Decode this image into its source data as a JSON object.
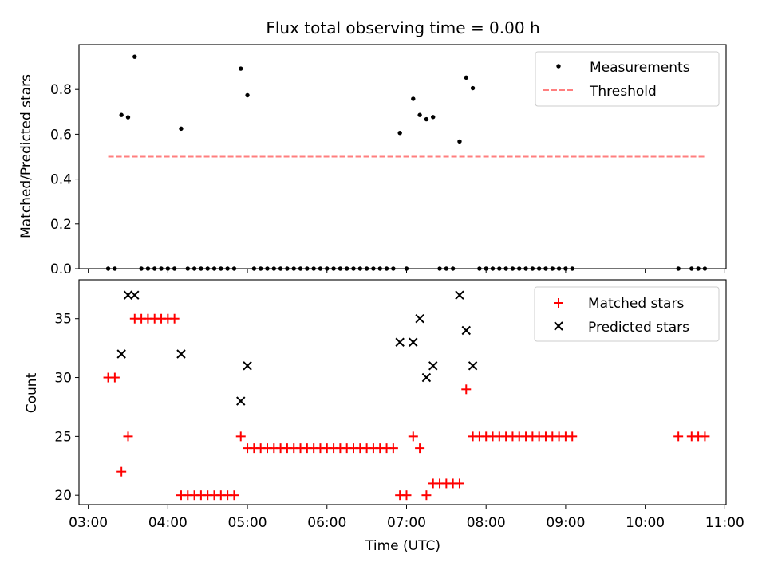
{
  "chart_data": [
    {
      "type": "scatter",
      "title": "Flux total observing time = 0.00 h",
      "xlabel": "",
      "ylabel": "Matched/Predicted stars",
      "ylim": [
        0,
        1.0
      ],
      "yticks": [
        0.0,
        0.2,
        0.4,
        0.6,
        0.8
      ],
      "ytick_labels": [
        "0.0",
        "0.2",
        "0.4",
        "0.6",
        "0.8"
      ],
      "xlim": [
        "02:53",
        "11:01"
      ],
      "legend": {
        "position": "top-right",
        "entries": [
          "Measurements",
          "Threshold"
        ]
      },
      "colors": {
        "measurements": "#000000",
        "threshold": "#ff7f7f"
      },
      "series": [
        {
          "name": "Measurements",
          "marker": "dot",
          "points": [
            [
              "03:15",
              0
            ],
            [
              "03:20",
              0
            ],
            [
              "03:25",
              0.686
            ],
            [
              "03:30",
              0.676
            ],
            [
              "03:35",
              0.946
            ],
            [
              "03:40",
              0
            ],
            [
              "03:45",
              0
            ],
            [
              "03:50",
              0
            ],
            [
              "03:55",
              0
            ],
            [
              "04:00",
              0
            ],
            [
              "04:05",
              0
            ],
            [
              "04:10",
              0.625
            ],
            [
              "04:15",
              0
            ],
            [
              "04:20",
              0
            ],
            [
              "04:25",
              0
            ],
            [
              "04:30",
              0
            ],
            [
              "04:35",
              0
            ],
            [
              "04:40",
              0
            ],
            [
              "04:45",
              0
            ],
            [
              "04:50",
              0
            ],
            [
              "04:55",
              0.893
            ],
            [
              "05:00",
              0.774
            ],
            [
              "05:05",
              0
            ],
            [
              "05:10",
              0
            ],
            [
              "05:15",
              0
            ],
            [
              "05:20",
              0
            ],
            [
              "05:25",
              0
            ],
            [
              "05:30",
              0
            ],
            [
              "05:35",
              0
            ],
            [
              "05:40",
              0
            ],
            [
              "05:45",
              0
            ],
            [
              "05:50",
              0
            ],
            [
              "05:55",
              0
            ],
            [
              "06:00",
              0
            ],
            [
              "06:05",
              0
            ],
            [
              "06:10",
              0
            ],
            [
              "06:15",
              0
            ],
            [
              "06:20",
              0
            ],
            [
              "06:25",
              0
            ],
            [
              "06:30",
              0
            ],
            [
              "06:35",
              0
            ],
            [
              "06:40",
              0
            ],
            [
              "06:45",
              0
            ],
            [
              "06:50",
              0
            ],
            [
              "06:55",
              0.606
            ],
            [
              "07:00",
              0
            ],
            [
              "07:05",
              0.758
            ],
            [
              "07:10",
              0.686
            ],
            [
              "07:15",
              0.667
            ],
            [
              "07:20",
              0.677
            ],
            [
              "07:25",
              0
            ],
            [
              "07:30",
              0
            ],
            [
              "07:35",
              0
            ],
            [
              "07:40",
              0.568
            ],
            [
              "07:45",
              0.853
            ],
            [
              "07:50",
              0.806
            ],
            [
              "07:55",
              0
            ],
            [
              "08:00",
              0
            ],
            [
              "08:05",
              0
            ],
            [
              "08:10",
              0
            ],
            [
              "08:15",
              0
            ],
            [
              "08:20",
              0
            ],
            [
              "08:25",
              0
            ],
            [
              "08:30",
              0
            ],
            [
              "08:35",
              0
            ],
            [
              "08:40",
              0
            ],
            [
              "08:45",
              0
            ],
            [
              "08:50",
              0
            ],
            [
              "08:55",
              0
            ],
            [
              "09:00",
              0
            ],
            [
              "09:05",
              0
            ],
            [
              "10:25",
              0
            ],
            [
              "10:35",
              0
            ],
            [
              "10:40",
              0
            ],
            [
              "10:45",
              0
            ]
          ]
        },
        {
          "name": "Threshold",
          "style": "dashed",
          "points": [
            [
              "03:15",
              0.5
            ],
            [
              "10:45",
              0.5
            ]
          ]
        }
      ]
    },
    {
      "type": "scatter",
      "title": "",
      "xlabel": "Time (UTC)",
      "ylabel": "Count",
      "ylim": [
        19.2,
        38.3
      ],
      "yticks": [
        20,
        25,
        30,
        35
      ],
      "ytick_labels": [
        "20",
        "25",
        "30",
        "35"
      ],
      "xlim": [
        "02:53",
        "11:01"
      ],
      "xticks": [
        "03:00",
        "04:00",
        "05:00",
        "06:00",
        "07:00",
        "08:00",
        "09:00",
        "10:00",
        "11:00"
      ],
      "legend": {
        "position": "top-right",
        "entries": [
          "Matched stars",
          "Predicted stars"
        ]
      },
      "colors": {
        "matched": "#ff0000",
        "predicted": "#000000"
      },
      "series": [
        {
          "name": "Matched stars",
          "marker": "plus",
          "points": [
            [
              "03:15",
              30
            ],
            [
              "03:20",
              30
            ],
            [
              "03:25",
              22
            ],
            [
              "03:30",
              25
            ],
            [
              "03:35",
              35
            ],
            [
              "03:40",
              35
            ],
            [
              "03:45",
              35
            ],
            [
              "03:50",
              35
            ],
            [
              "03:55",
              35
            ],
            [
              "04:00",
              35
            ],
            [
              "04:05",
              35
            ],
            [
              "04:10",
              20
            ],
            [
              "04:15",
              20
            ],
            [
              "04:20",
              20
            ],
            [
              "04:25",
              20
            ],
            [
              "04:30",
              20
            ],
            [
              "04:35",
              20
            ],
            [
              "04:40",
              20
            ],
            [
              "04:45",
              20
            ],
            [
              "04:50",
              20
            ],
            [
              "04:55",
              25
            ],
            [
              "05:00",
              24
            ],
            [
              "05:05",
              24
            ],
            [
              "05:10",
              24
            ],
            [
              "05:15",
              24
            ],
            [
              "05:20",
              24
            ],
            [
              "05:25",
              24
            ],
            [
              "05:30",
              24
            ],
            [
              "05:35",
              24
            ],
            [
              "05:40",
              24
            ],
            [
              "05:45",
              24
            ],
            [
              "05:50",
              24
            ],
            [
              "05:55",
              24
            ],
            [
              "06:00",
              24
            ],
            [
              "06:05",
              24
            ],
            [
              "06:10",
              24
            ],
            [
              "06:15",
              24
            ],
            [
              "06:20",
              24
            ],
            [
              "06:25",
              24
            ],
            [
              "06:30",
              24
            ],
            [
              "06:35",
              24
            ],
            [
              "06:40",
              24
            ],
            [
              "06:45",
              24
            ],
            [
              "06:50",
              24
            ],
            [
              "06:55",
              20
            ],
            [
              "07:00",
              20
            ],
            [
              "07:05",
              25
            ],
            [
              "07:10",
              24
            ],
            [
              "07:15",
              20
            ],
            [
              "07:20",
              21
            ],
            [
              "07:25",
              21
            ],
            [
              "07:30",
              21
            ],
            [
              "07:35",
              21
            ],
            [
              "07:40",
              21
            ],
            [
              "07:45",
              29
            ],
            [
              "07:50",
              25
            ],
            [
              "07:55",
              25
            ],
            [
              "08:00",
              25
            ],
            [
              "08:05",
              25
            ],
            [
              "08:10",
              25
            ],
            [
              "08:15",
              25
            ],
            [
              "08:20",
              25
            ],
            [
              "08:25",
              25
            ],
            [
              "08:30",
              25
            ],
            [
              "08:35",
              25
            ],
            [
              "08:40",
              25
            ],
            [
              "08:45",
              25
            ],
            [
              "08:50",
              25
            ],
            [
              "08:55",
              25
            ],
            [
              "09:00",
              25
            ],
            [
              "09:05",
              25
            ],
            [
              "10:25",
              25
            ],
            [
              "10:35",
              25
            ],
            [
              "10:40",
              25
            ],
            [
              "10:45",
              25
            ]
          ]
        },
        {
          "name": "Predicted stars",
          "marker": "x",
          "points": [
            [
              "03:25",
              32
            ],
            [
              "03:30",
              37
            ],
            [
              "03:35",
              37
            ],
            [
              "04:10",
              32
            ],
            [
              "04:55",
              28
            ],
            [
              "05:00",
              31
            ],
            [
              "06:55",
              33
            ],
            [
              "07:05",
              33
            ],
            [
              "07:10",
              35
            ],
            [
              "07:15",
              30
            ],
            [
              "07:20",
              31
            ],
            [
              "07:40",
              37
            ],
            [
              "07:45",
              34
            ],
            [
              "07:50",
              31
            ]
          ]
        }
      ]
    }
  ]
}
